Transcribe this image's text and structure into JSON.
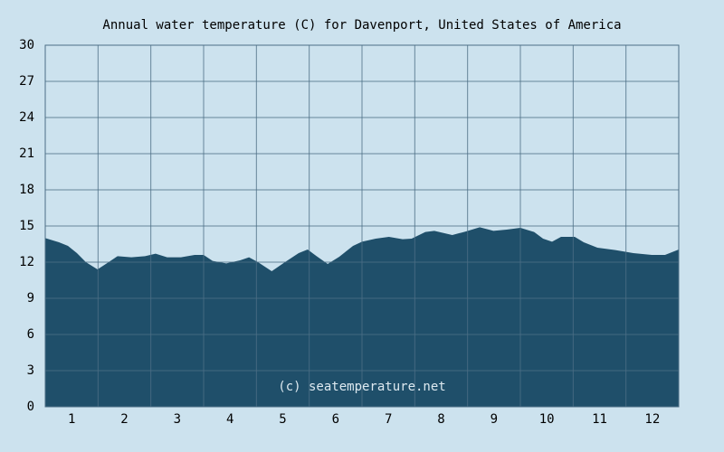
{
  "chart_data": {
    "type": "area",
    "title": "Annual water temperature (C) for Davenport, United States of America",
    "watermark": "(c) seatemperature.net",
    "color": "#1f4f6a",
    "x": [
      0.5,
      0.76,
      0.93,
      1.1,
      1.27,
      1.49,
      1.7,
      1.87,
      2.13,
      2.39,
      2.59,
      2.81,
      3.07,
      3.33,
      3.5,
      3.67,
      3.93,
      4.19,
      4.36,
      4.53,
      4.79,
      5.04,
      5.3,
      5.47,
      5.64,
      5.85,
      6.07,
      6.33,
      6.5,
      6.76,
      7.01,
      7.27,
      7.44,
      7.7,
      7.87,
      8.21,
      8.47,
      8.73,
      8.99,
      9.24,
      9.5,
      9.76,
      9.93,
      10.1,
      10.27,
      10.53,
      10.7,
      10.96,
      11.3,
      11.64,
      11.99,
      12.24,
      12.5
    ],
    "values": [
      14.0,
      13.65,
      13.35,
      12.75,
      12.0,
      11.4,
      12.0,
      12.5,
      12.4,
      12.5,
      12.7,
      12.4,
      12.4,
      12.6,
      12.6,
      12.1,
      11.9,
      12.15,
      12.4,
      12.0,
      11.25,
      12.0,
      12.75,
      13.05,
      12.5,
      11.85,
      12.45,
      13.35,
      13.7,
      13.95,
      14.1,
      13.9,
      13.95,
      14.5,
      14.6,
      14.25,
      14.55,
      14.9,
      14.6,
      14.7,
      14.85,
      14.5,
      13.95,
      13.7,
      14.1,
      14.1,
      13.65,
      13.2,
      13.0,
      12.75,
      12.6,
      12.6,
      13.05
    ],
    "xlim": [
      0.5,
      12.5
    ],
    "xticks": [
      1,
      2,
      3,
      4,
      5,
      6,
      7,
      8,
      9,
      10,
      11,
      12
    ],
    "ylim": [
      0,
      30
    ],
    "yticks": [
      0,
      3,
      6,
      9,
      12,
      15,
      18,
      21,
      24,
      27,
      30
    ],
    "grid": true
  }
}
